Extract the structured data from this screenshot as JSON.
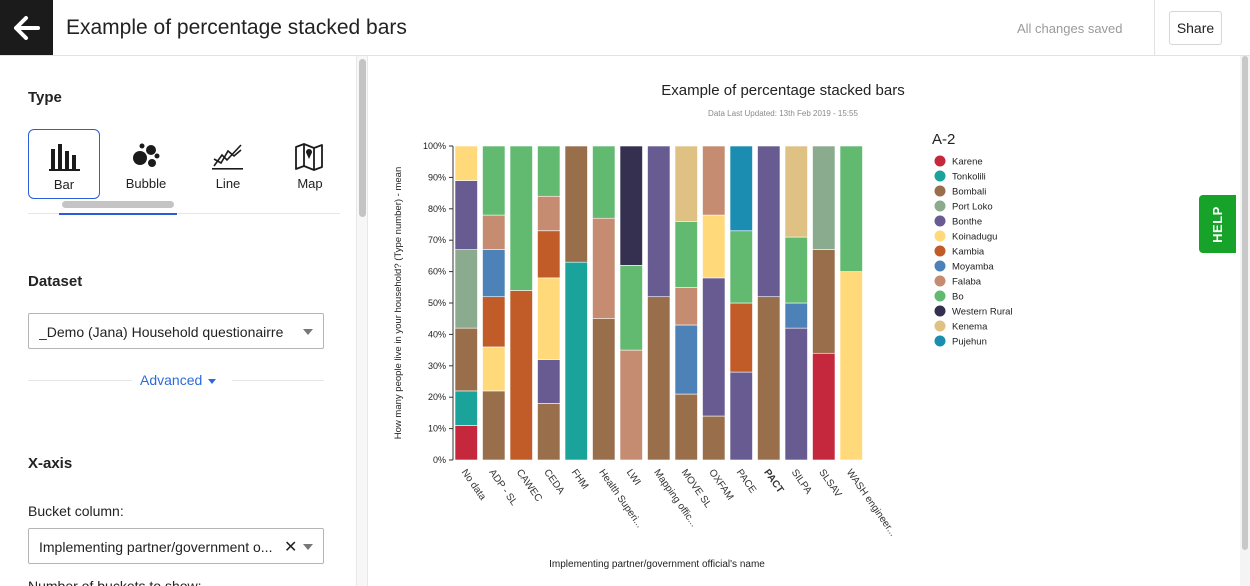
{
  "header": {
    "title": "Example of percentage stacked bars",
    "save_status": "All changes saved",
    "share_label": "Share"
  },
  "left_panel": {
    "type_title": "Type",
    "types": [
      {
        "label": "Bar",
        "icon": "bar-chart-icon",
        "active": true
      },
      {
        "label": "Bubble",
        "icon": "bubble-chart-icon",
        "active": false
      },
      {
        "label": "Line",
        "icon": "line-chart-icon",
        "active": false
      },
      {
        "label": "Map",
        "icon": "map-icon",
        "active": false
      }
    ],
    "dataset_title": "Dataset",
    "dataset_value": "_Demo (Jana) Household questionairre",
    "advanced_label": "Advanced",
    "xaxis_title": "X-axis",
    "bucket_label": "Bucket column:",
    "bucket_value": "Implementing partner/government o...",
    "buckets_label": "Number of buckets to show:"
  },
  "help_label": "HELP",
  "chart_data": {
    "type": "bar",
    "stacked": "percent",
    "title": "Example of percentage stacked bars",
    "subtitle": "Data Last Updated: 13th Feb 2019 - 15:55",
    "xlabel": "Implementing partner/government official's name",
    "ylabel": "How many people live in your household? (Type number) - mean",
    "ylim": [
      0,
      100
    ],
    "yticks": [
      "0%",
      "10%",
      "20%",
      "30%",
      "40%",
      "50%",
      "60%",
      "70%",
      "80%",
      "90%",
      "100%"
    ],
    "legend_title": "A-2",
    "legend_position": "right",
    "series_colors": {
      "Karene": "#c5283d",
      "Tonkolili": "#1aa39a",
      "Bombali": "#986e4b",
      "Port Loko": "#8aab8e",
      "Bonthe": "#675b91",
      "Koinadugu": "#ffd97a",
      "Kambia": "#c15c29",
      "Moyamba": "#4c82b7",
      "Falaba": "#c58c72",
      "Bo": "#62ba71",
      "Western Rural": "#35304f",
      "Kenema": "#dec183",
      "Pujehun": "#1b8db1"
    },
    "categories": [
      "No data",
      "ADP - SL",
      "CAWEC",
      "CEDA",
      "FHM",
      "Health Superi...",
      "LWI",
      "Mapping offic...",
      "MOVE SL",
      "OXFAM",
      "PACE",
      "PACT",
      "SILPA",
      "SLSAV",
      "WASH engineer..."
    ],
    "bold_category": "PACT",
    "stacks": [
      [
        {
          "s": "Karene",
          "v": 11
        },
        {
          "s": "Tonkolili",
          "v": 11
        },
        {
          "s": "Bombali",
          "v": 20
        },
        {
          "s": "Port Loko",
          "v": 25
        },
        {
          "s": "Bonthe",
          "v": 22
        },
        {
          "s": "Koinadugu",
          "v": 11
        }
      ],
      [
        {
          "s": "Bombali",
          "v": 22
        },
        {
          "s": "Koinadugu",
          "v": 14
        },
        {
          "s": "Kambia",
          "v": 16
        },
        {
          "s": "Moyamba",
          "v": 15
        },
        {
          "s": "Falaba",
          "v": 11
        },
        {
          "s": "Bo",
          "v": 22
        }
      ],
      [
        {
          "s": "Kambia",
          "v": 54
        },
        {
          "s": "Bo",
          "v": 46
        }
      ],
      [
        {
          "s": "Bombali",
          "v": 18
        },
        {
          "s": "Bonthe",
          "v": 14
        },
        {
          "s": "Koinadugu",
          "v": 26
        },
        {
          "s": "Kambia",
          "v": 15
        },
        {
          "s": "Falaba",
          "v": 11
        },
        {
          "s": "Bo",
          "v": 16
        }
      ],
      [
        {
          "s": "Tonkolili",
          "v": 63
        },
        {
          "s": "Bombali",
          "v": 37
        }
      ],
      [
        {
          "s": "Bombali",
          "v": 45
        },
        {
          "s": "Falaba",
          "v": 32
        },
        {
          "s": "Bo",
          "v": 23
        }
      ],
      [
        {
          "s": "Falaba",
          "v": 35
        },
        {
          "s": "Bo",
          "v": 27
        },
        {
          "s": "Western Rural",
          "v": 38
        }
      ],
      [
        {
          "s": "Bombali",
          "v": 52
        },
        {
          "s": "Bonthe",
          "v": 48
        }
      ],
      [
        {
          "s": "Bombali",
          "v": 21
        },
        {
          "s": "Moyamba",
          "v": 22
        },
        {
          "s": "Falaba",
          "v": 12
        },
        {
          "s": "Bo",
          "v": 21
        },
        {
          "s": "Kenema",
          "v": 24
        }
      ],
      [
        {
          "s": "Bombali",
          "v": 14
        },
        {
          "s": "Bonthe",
          "v": 44
        },
        {
          "s": "Koinadugu",
          "v": 20
        },
        {
          "s": "Falaba",
          "v": 22
        }
      ],
      [
        {
          "s": "Bonthe",
          "v": 28
        },
        {
          "s": "Kambia",
          "v": 22
        },
        {
          "s": "Bo",
          "v": 23
        },
        {
          "s": "Pujehun",
          "v": 27
        }
      ],
      [
        {
          "s": "Bombali",
          "v": 52
        },
        {
          "s": "Bonthe",
          "v": 48
        }
      ],
      [
        {
          "s": "Bonthe",
          "v": 42
        },
        {
          "s": "Moyamba",
          "v": 8
        },
        {
          "s": "Bo",
          "v": 21
        },
        {
          "s": "Kenema",
          "v": 29
        }
      ],
      [
        {
          "s": "Karene",
          "v": 34
        },
        {
          "s": "Bombali",
          "v": 33
        },
        {
          "s": "Port Loko",
          "v": 33
        }
      ],
      [
        {
          "s": "Koinadugu",
          "v": 60
        },
        {
          "s": "Bo",
          "v": 40
        }
      ]
    ]
  }
}
